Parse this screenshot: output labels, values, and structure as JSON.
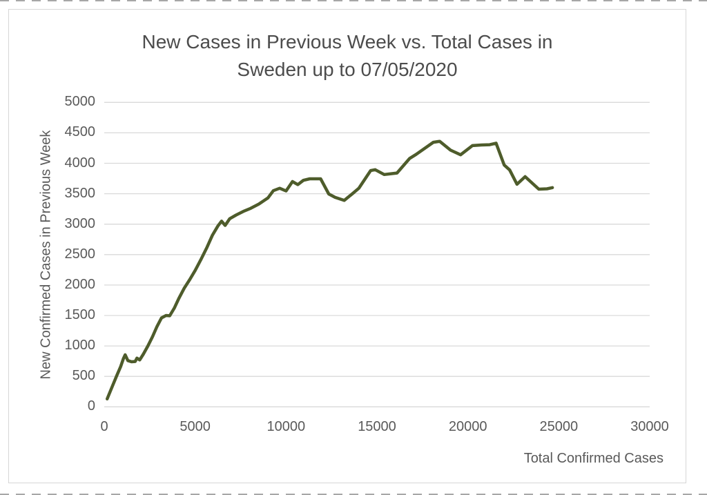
{
  "screen": {
    "edge_artifact_color": "#3c3c3c"
  },
  "chart": {
    "title_lines": [
      "New Cases in Previous Week vs. Total Cases in",
      "Sweden up to 07/05/2020"
    ]
  },
  "chart_data": {
    "type": "line",
    "title": "New Cases in Previous Week vs. Total Cases in Sweden up to 07/05/2020",
    "xlabel": "Total Confirmed Cases",
    "ylabel": "New Confirmed Cases in Previous Week",
    "xlim": [
      0,
      30000
    ],
    "ylim": [
      0,
      5000
    ],
    "x_ticks": [
      0,
      5000,
      10000,
      15000,
      20000,
      25000,
      30000
    ],
    "y_ticks": [
      0,
      500,
      1000,
      1500,
      2000,
      2500,
      3000,
      3500,
      4000,
      4500,
      5000
    ],
    "grid": "horizontal",
    "gridline_color": "#d9d9d9",
    "legend": "none",
    "line_color": "#4e5c2b",
    "line_width": 4.5,
    "series": [
      {
        "name": "New confirmed cases in previous week vs total confirmed cases",
        "points": [
          [
            160,
            130
          ],
          [
            450,
            340
          ],
          [
            700,
            520
          ],
          [
            900,
            660
          ],
          [
            1050,
            790
          ],
          [
            1150,
            855
          ],
          [
            1300,
            760
          ],
          [
            1500,
            740
          ],
          [
            1700,
            745
          ],
          [
            1800,
            800
          ],
          [
            1950,
            770
          ],
          [
            2150,
            865
          ],
          [
            2400,
            1000
          ],
          [
            2650,
            1150
          ],
          [
            2900,
            1320
          ],
          [
            3150,
            1460
          ],
          [
            3400,
            1500
          ],
          [
            3600,
            1495
          ],
          [
            3850,
            1620
          ],
          [
            4100,
            1780
          ],
          [
            4400,
            1950
          ],
          [
            4700,
            2090
          ],
          [
            5000,
            2240
          ],
          [
            5300,
            2410
          ],
          [
            5650,
            2620
          ],
          [
            5950,
            2820
          ],
          [
            6250,
            2970
          ],
          [
            6450,
            3050
          ],
          [
            6650,
            2980
          ],
          [
            6900,
            3090
          ],
          [
            7250,
            3150
          ],
          [
            7650,
            3210
          ],
          [
            8050,
            3260
          ],
          [
            8500,
            3330
          ],
          [
            9000,
            3430
          ],
          [
            9300,
            3550
          ],
          [
            9650,
            3590
          ],
          [
            10000,
            3545
          ],
          [
            10350,
            3700
          ],
          [
            10650,
            3650
          ],
          [
            10950,
            3720
          ],
          [
            11300,
            3745
          ],
          [
            11900,
            3745
          ],
          [
            12350,
            3495
          ],
          [
            12700,
            3440
          ],
          [
            13200,
            3390
          ],
          [
            13650,
            3500
          ],
          [
            14000,
            3590
          ],
          [
            14650,
            3880
          ],
          [
            14900,
            3895
          ],
          [
            15400,
            3815
          ],
          [
            16100,
            3840
          ],
          [
            16800,
            4080
          ],
          [
            17150,
            4145
          ],
          [
            18100,
            4345
          ],
          [
            18450,
            4360
          ],
          [
            19050,
            4215
          ],
          [
            19600,
            4140
          ],
          [
            20250,
            4290
          ],
          [
            20750,
            4300
          ],
          [
            21200,
            4305
          ],
          [
            21550,
            4330
          ],
          [
            22000,
            3970
          ],
          [
            22300,
            3890
          ],
          [
            22700,
            3655
          ],
          [
            23150,
            3780
          ],
          [
            23900,
            3575
          ],
          [
            24350,
            3580
          ],
          [
            24650,
            3600
          ]
        ]
      }
    ]
  }
}
